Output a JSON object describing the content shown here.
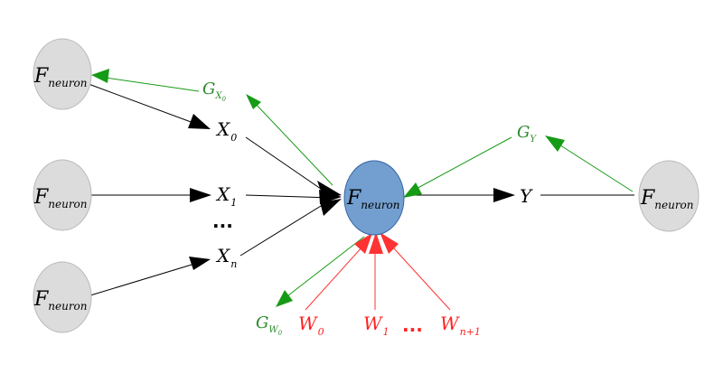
{
  "neuron_label": {
    "main": "F",
    "sub": "neuron"
  },
  "input_labels": [
    {
      "main": "X",
      "sub": "0"
    },
    {
      "main": "X",
      "sub": "1"
    },
    {
      "main": "X",
      "sub": "n"
    }
  ],
  "input_dots": "...",
  "output_label": {
    "main": "Y"
  },
  "grad_labels": {
    "gx0": {
      "main": "G",
      "sub": "X",
      "subsub": "0"
    },
    "gy": {
      "main": "G",
      "sub": "Y"
    },
    "gw0": {
      "main": "G",
      "sub": "W",
      "subsub": "0"
    }
  },
  "weight_labels": [
    {
      "main": "W",
      "sub": "0"
    },
    {
      "main": "W",
      "sub": "1"
    },
    {
      "main": "W",
      "sub": "n+1"
    }
  ],
  "weight_dots": "...",
  "colors": {
    "node_fill": "#dcdcdc",
    "node_stroke": "#b9b9b9",
    "center_fill": "#729fcf",
    "center_stroke": "#3465a4",
    "forward": "#000000",
    "gradient": "#169b16",
    "gradient_text": "#2a8a2a",
    "weight": "#ff3333",
    "weight_text": "#ff2222"
  }
}
